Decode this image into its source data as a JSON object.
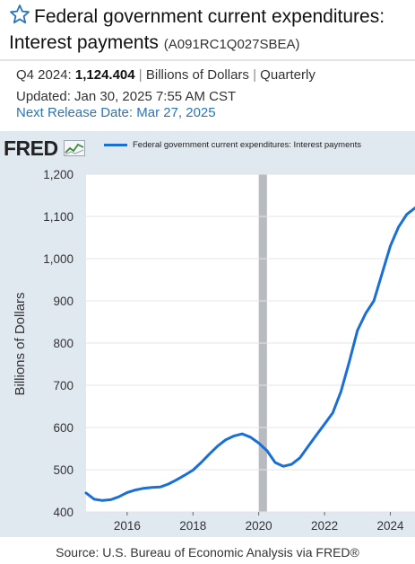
{
  "header": {
    "title_line1": "Federal government current expenditures:",
    "title_line2": "Interest payments",
    "series_id": "(A091RC1Q027SBEA)",
    "star_icon": "star-outline-icon"
  },
  "meta": {
    "period": "Q4 2024:",
    "value": "1,124.404",
    "units": "Billions of Dollars",
    "frequency": "Quarterly",
    "separator": "|",
    "updated": "Updated: Jan 30, 2025 7:55 AM CST",
    "next_release": "Next Release Date: Mar 27, 2025"
  },
  "logo": {
    "text": "FRED",
    "icon": "fred-line-chart-icon"
  },
  "source": "Source: U.S. Bureau of Economic Analysis via FRED®",
  "colors": {
    "line": "#1a6fd6",
    "panel": "#e1e9f0",
    "link": "#2a74b9",
    "recession": "#b8bcc0"
  },
  "chart_data": {
    "type": "line",
    "series": [
      {
        "name": "Federal government current expenditures: Interest payments",
        "x": [
          2014.75,
          2015.0,
          2015.25,
          2015.5,
          2015.75,
          2016.0,
          2016.25,
          2016.5,
          2016.75,
          2017.0,
          2017.25,
          2017.5,
          2017.75,
          2018.0,
          2018.25,
          2018.5,
          2018.75,
          2019.0,
          2019.25,
          2019.5,
          2019.75,
          2020.0,
          2020.25,
          2020.5,
          2020.75,
          2021.0,
          2021.25,
          2021.5,
          2021.75,
          2022.0,
          2022.25,
          2022.5,
          2022.75,
          2023.0,
          2023.25,
          2023.5,
          2023.75,
          2024.0,
          2024.25,
          2024.5,
          2024.75
        ],
        "values": [
          445,
          430,
          427,
          429,
          436,
          446,
          452,
          456,
          458,
          459,
          466,
          476,
          487,
          499,
          517,
          537,
          556,
          571,
          580,
          585,
          577,
          563,
          545,
          517,
          508,
          513,
          528,
          555,
          582,
          608,
          635,
          685,
          755,
          830,
          870,
          900,
          965,
          1030,
          1075,
          1105,
          1120
        ]
      }
    ],
    "xlabel": "",
    "ylabel": "Billions of Dollars",
    "xlim": [
      2014.75,
      2024.75
    ],
    "ylim": [
      400,
      1200
    ],
    "x_ticks": [
      2016,
      2018,
      2020,
      2022,
      2024
    ],
    "x_tick_labels": [
      "2016",
      "2018",
      "2020",
      "2022",
      "2024"
    ],
    "y_ticks": [
      400,
      500,
      600,
      700,
      800,
      900,
      1000,
      1100,
      1200
    ],
    "y_tick_labels": [
      "400",
      "500",
      "600",
      "700",
      "800",
      "900",
      "1,000",
      "1,100",
      "1,200"
    ],
    "recessions": [
      [
        2020.0,
        2020.25
      ]
    ],
    "grid": "horizontal",
    "legend": "top"
  }
}
